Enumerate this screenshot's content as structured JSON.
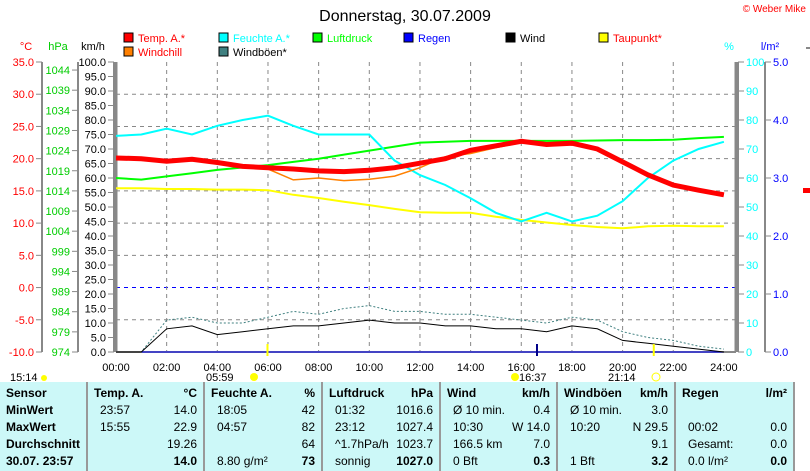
{
  "chart_data": {
    "type": "line",
    "title": "Donnerstag, 30.07.2009",
    "copyright": "© Weber Mike",
    "axes": {
      "temp": {
        "unit": "°C",
        "range": [
          -10,
          35
        ],
        "ticks": [
          "35.0",
          "30.0",
          "25.0",
          "20.0",
          "15.0",
          "10.0",
          "5.0",
          "0.0",
          "-5.0",
          "-10.0"
        ]
      },
      "pressure": {
        "unit": "hPa",
        "range": [
          974,
          1046
        ],
        "ticks": [
          "1044",
          "1039",
          "1034",
          "1029",
          "1024",
          "1019",
          "1014",
          "1009",
          "1004",
          "999",
          "994",
          "989",
          "984",
          "979",
          "974"
        ]
      },
      "wind": {
        "unit": "km/h",
        "range": [
          0,
          100
        ],
        "ticks": [
          "100.0",
          "95.0",
          "90.0",
          "85.0",
          "80.0",
          "75.0",
          "70.0",
          "65.0",
          "60.0",
          "55.0",
          "50.0",
          "45.0",
          "40.0",
          "35.0",
          "30.0",
          "25.0",
          "20.0",
          "15.0",
          "10.0",
          "5.0",
          "0.0"
        ]
      },
      "humidity": {
        "unit": "%",
        "range": [
          0,
          100
        ],
        "ticks": [
          "100",
          "90",
          "80",
          "70",
          "60",
          "50",
          "40",
          "30",
          "20",
          "10",
          "0"
        ]
      },
      "rain": {
        "unit": "l/m²",
        "range": [
          0,
          5
        ],
        "ticks": [
          "5.0",
          "4.0",
          "3.0",
          "2.0",
          "1.0",
          "0.0"
        ]
      }
    },
    "x_ticks": [
      "00:00",
      "02:00",
      "04:00",
      "06:00",
      "08:00",
      "10:00",
      "12:00",
      "14:00",
      "16:00",
      "18:00",
      "20:00",
      "22:00",
      "24:00"
    ],
    "x": [
      0,
      1,
      2,
      3,
      4,
      5,
      6,
      7,
      8,
      9,
      10,
      11,
      12,
      13,
      14,
      15,
      16,
      17,
      18,
      19,
      20,
      21,
      22,
      23,
      24
    ],
    "series": [
      {
        "name": "Temp. A.*",
        "color": "#ff0000",
        "axis": "temp",
        "values": [
          20.1,
          20.0,
          19.6,
          19.9,
          19.4,
          18.8,
          18.6,
          18.4,
          18.1,
          18.0,
          18.2,
          18.6,
          19.3,
          20.0,
          21.3,
          22.0,
          22.7,
          22.2,
          22.4,
          21.5,
          19.5,
          17.5,
          15.9,
          15.1,
          14.4
        ]
      },
      {
        "name": "Windchill",
        "color": "#ff8000",
        "axis": "temp",
        "values": [
          20.1,
          20.0,
          19.6,
          19.9,
          19.4,
          18.8,
          18.4,
          16.7,
          17.0,
          16.6,
          16.8,
          17.3,
          18.6,
          20.3,
          20.8,
          21.7,
          22.5,
          22.2,
          22.4,
          21.3,
          19.5,
          17.5,
          15.9,
          15.1,
          14.4
        ]
      },
      {
        "name": "Feuchte A.*",
        "color": "#00ffff",
        "axis": "humidity",
        "values": [
          74.5,
          75,
          77,
          75,
          78,
          80,
          81.5,
          78,
          75,
          75,
          75,
          66,
          61,
          57.6,
          53,
          48,
          45,
          48,
          45,
          47,
          52,
          60,
          66,
          70,
          72.5
        ]
      },
      {
        "name": "Luftdruck",
        "color": "#00ff00",
        "axis": "pressure",
        "values": [
          1017.2,
          1016.8,
          1017.6,
          1018.4,
          1019.2,
          1019.8,
          1020.4,
          1021.2,
          1022,
          1023,
          1024,
          1025,
          1026,
          1026.2,
          1026.4,
          1026.4,
          1026.4,
          1026.4,
          1026.4,
          1026.5,
          1026.6,
          1026.6,
          1026.7,
          1027.1,
          1027.4
        ]
      },
      {
        "name": "Taupunkt*",
        "color": "#ffff00",
        "axis": "temp",
        "values": [
          15.4,
          15.4,
          15.3,
          15.3,
          15.2,
          15.2,
          15.1,
          14.4,
          13.9,
          13.3,
          12.8,
          12.2,
          11.7,
          11.6,
          11.6,
          11.0,
          10.5,
          10.1,
          9.7,
          9.4,
          9.2,
          9.5,
          9.6,
          9.5,
          9.5
        ]
      },
      {
        "name": "Wind",
        "color": "#000000",
        "axis": "wind",
        "values": [
          0,
          0,
          8,
          9,
          6,
          7,
          8,
          9,
          9,
          10,
          11,
          10,
          10,
          9,
          9,
          8,
          8,
          7,
          9,
          8,
          4,
          3,
          2,
          1,
          0
        ]
      },
      {
        "name": "Windböen*",
        "color": "#408080",
        "axis": "wind",
        "values": [
          0,
          0,
          11,
          12,
          10,
          10,
          12,
          14,
          13,
          15,
          16,
          14,
          14,
          13,
          13,
          12,
          11,
          10,
          12,
          11,
          7,
          5,
          4,
          2,
          1
        ]
      },
      {
        "name": "Regen",
        "color": "#0000ff",
        "axis": "rain",
        "values": [
          0,
          0,
          0,
          0,
          0,
          0,
          0,
          0,
          0,
          0,
          0,
          0,
          0,
          0,
          0,
          0,
          0,
          0,
          0,
          0,
          0,
          0,
          0,
          0,
          0
        ]
      }
    ],
    "legend": [
      {
        "label": "Temp. A.*",
        "color": "#ff0000",
        "text_color": "#ff0000"
      },
      {
        "label": "Windchill",
        "color": "#ff8000",
        "text_color": "#ff0000"
      },
      {
        "label": "Feuchte A.*",
        "color": "#00ffff",
        "text_color": "#00ffff"
      },
      {
        "label": "Windböen*",
        "color": "#408080",
        "text_color": "#000000"
      },
      {
        "label": "Luftdruck",
        "color": "#00ff00",
        "text_color": "#00ff00"
      },
      {
        "label": "Regen",
        "color": "#0000ff",
        "text_color": "#0000ff"
      },
      {
        "label": "Wind",
        "color": "#000000",
        "text_color": "#000000"
      },
      {
        "label": "Taupunkt*",
        "color": "#ffff00",
        "text_color": "#ff0000"
      }
    ],
    "events": [
      {
        "time": "15:14",
        "icon": "moon-icon"
      },
      {
        "time": "05:59",
        "icon": "sunrise-icon",
        "hour": 5.98
      },
      {
        "time": "16:37",
        "icon": "moonset-icon",
        "hour": 16.62
      },
      {
        "time": "21:14",
        "icon": "sunset-icon",
        "hour": 21.23
      }
    ]
  },
  "table": {
    "rows": [
      [
        "Sensor",
        "Temp. A.",
        "°C",
        "Feuchte A.",
        "%",
        "Luftdruck",
        "hPa",
        "Wind",
        "km/h",
        "Windböen",
        "km/h",
        "Regen",
        "l/m²"
      ],
      [
        "MinWert",
        "23:57",
        "14.0",
        "18:05",
        "42",
        "01:32",
        "1016.6",
        "Ø 10 min.",
        "0.4",
        "Ø 10 min.",
        "3.0",
        "",
        ""
      ],
      [
        "MaxWert",
        "15:55",
        "22.9",
        "04:57",
        "82",
        "23:12",
        "1027.4",
        "10:30",
        "W 14.0",
        "10:20",
        "N 29.5",
        "00:02",
        "0.0"
      ],
      [
        "Durchschnitt",
        "",
        "19.26",
        "",
        "64",
        "^1.7hPa/h",
        "1023.7",
        "166.5 km",
        "7.0",
        "",
        "9.1",
        "Gesamt:",
        "0.0"
      ],
      [
        "30.07. 23:57",
        "",
        "14.0",
        "8.80 g/m²",
        "73",
        "sonnig",
        "1027.0",
        "0 Bft",
        "0.3",
        "1 Bft",
        "3.2",
        "0.0 l/m²",
        "0.0"
      ]
    ]
  }
}
